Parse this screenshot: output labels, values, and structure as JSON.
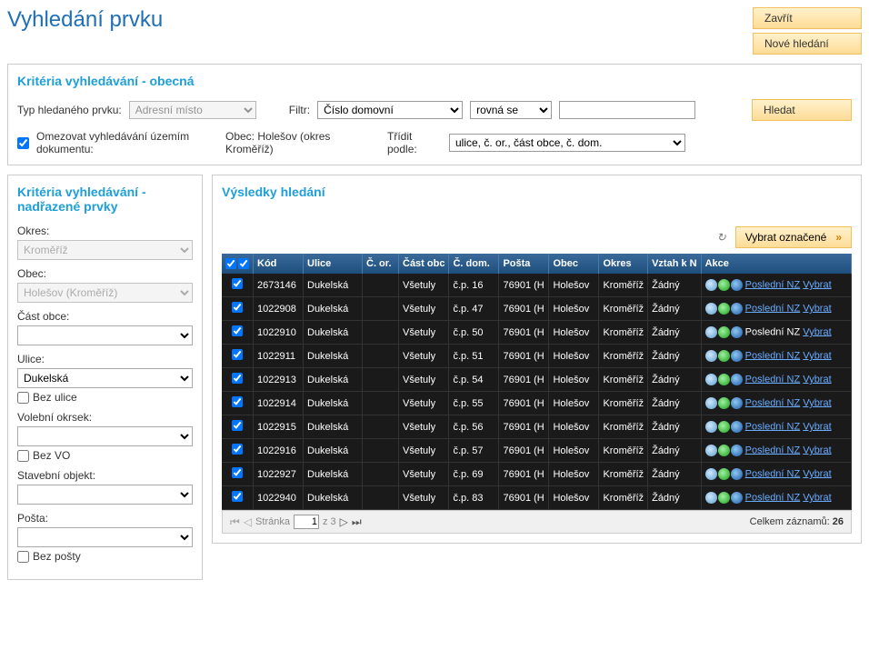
{
  "header": {
    "title": "Vyhledání prvku",
    "btn_close": "Zavřít",
    "btn_new_search": "Nové hledání"
  },
  "criteria_general": {
    "title": "Kritéria vyhledávání - obecná",
    "type_label": "Typ hledaného prvku:",
    "type_value": "Adresní místo",
    "filter_label": "Filtr:",
    "filter_field": "Číslo domovní",
    "filter_op": "rovná se",
    "filter_value": "",
    "btn_search": "Hledat",
    "limit_label": "Omezovat vyhledávání územím dokumentu:",
    "obec_label": "Obec: Holešov (okres Kroměříž)",
    "sort_label": "Třídit podle:",
    "sort_value": "ulice, č. or., část obce, č. dom."
  },
  "criteria_parent": {
    "title": "Kritéria vyhledávání - nadřazené prvky",
    "okres_label": "Okres:",
    "okres_value": "Kroměříž",
    "obec_label": "Obec:",
    "obec_value": "Holešov (Kroměříž)",
    "cast_label": "Část obce:",
    "cast_value": "",
    "ulice_label": "Ulice:",
    "ulice_value": "Dukelská",
    "bez_ulice": "Bez ulice",
    "vo_label": "Volební okrsek:",
    "vo_value": "",
    "bez_vo": "Bez VO",
    "so_label": "Stavební objekt:",
    "so_value": "",
    "posta_label": "Pošta:",
    "posta_value": "",
    "bez_posty": "Bez pošty"
  },
  "results": {
    "title": "Výsledky hledání",
    "btn_select_marked": "Vybrat označené",
    "cols": {
      "kod": "Kód",
      "ulice": "Ulice",
      "cor": "Č. or.",
      "cast": "Část obc",
      "cdom": "Č. dom.",
      "posta": "Pošta",
      "obec": "Obec",
      "okres": "Okres",
      "vztah": "Vztah k N",
      "akce": "Akce"
    },
    "rows": [
      {
        "kod": "2673146",
        "ulice": "Dukelská",
        "cor": "",
        "cast": "Všetuly",
        "cdom": "č.p. 16",
        "posta": "76901 (H",
        "obec": "Holešov",
        "okres": "Kroměříž",
        "vztah": "Žádný",
        "nz_link": true
      },
      {
        "kod": "1022908",
        "ulice": "Dukelská",
        "cor": "",
        "cast": "Všetuly",
        "cdom": "č.p. 47",
        "posta": "76901 (H",
        "obec": "Holešov",
        "okres": "Kroměříž",
        "vztah": "Žádný",
        "nz_link": true
      },
      {
        "kod": "1022910",
        "ulice": "Dukelská",
        "cor": "",
        "cast": "Všetuly",
        "cdom": "č.p. 50",
        "posta": "76901 (H",
        "obec": "Holešov",
        "okres": "Kroměříž",
        "vztah": "Žádný",
        "nz_link": false
      },
      {
        "kod": "1022911",
        "ulice": "Dukelská",
        "cor": "",
        "cast": "Všetuly",
        "cdom": "č.p. 51",
        "posta": "76901 (H",
        "obec": "Holešov",
        "okres": "Kroměříž",
        "vztah": "Žádný",
        "nz_link": true
      },
      {
        "kod": "1022913",
        "ulice": "Dukelská",
        "cor": "",
        "cast": "Všetuly",
        "cdom": "č.p. 54",
        "posta": "76901 (H",
        "obec": "Holešov",
        "okres": "Kroměříž",
        "vztah": "Žádný",
        "nz_link": true
      },
      {
        "kod": "1022914",
        "ulice": "Dukelská",
        "cor": "",
        "cast": "Všetuly",
        "cdom": "č.p. 55",
        "posta": "76901 (H",
        "obec": "Holešov",
        "okres": "Kroměříž",
        "vztah": "Žádný",
        "nz_link": true
      },
      {
        "kod": "1022915",
        "ulice": "Dukelská",
        "cor": "",
        "cast": "Všetuly",
        "cdom": "č.p. 56",
        "posta": "76901 (H",
        "obec": "Holešov",
        "okres": "Kroměříž",
        "vztah": "Žádný",
        "nz_link": true
      },
      {
        "kod": "1022916",
        "ulice": "Dukelská",
        "cor": "",
        "cast": "Všetuly",
        "cdom": "č.p. 57",
        "posta": "76901 (H",
        "obec": "Holešov",
        "okres": "Kroměříž",
        "vztah": "Žádný",
        "nz_link": true
      },
      {
        "kod": "1022927",
        "ulice": "Dukelská",
        "cor": "",
        "cast": "Všetuly",
        "cdom": "č.p. 69",
        "posta": "76901 (H",
        "obec": "Holešov",
        "okres": "Kroměříž",
        "vztah": "Žádný",
        "nz_link": true
      },
      {
        "kod": "1022940",
        "ulice": "Dukelská",
        "cor": "",
        "cast": "Všetuly",
        "cdom": "č.p. 83",
        "posta": "76901 (H",
        "obec": "Holešov",
        "okres": "Kroměříž",
        "vztah": "Žádný",
        "nz_link": true
      }
    ],
    "action_nz": "Poslední NZ",
    "action_select": "Vybrat",
    "pager": {
      "label_page": "Stránka",
      "page": "1",
      "of": "z 3",
      "total_label": "Celkem záznamů:",
      "total": "26"
    }
  }
}
